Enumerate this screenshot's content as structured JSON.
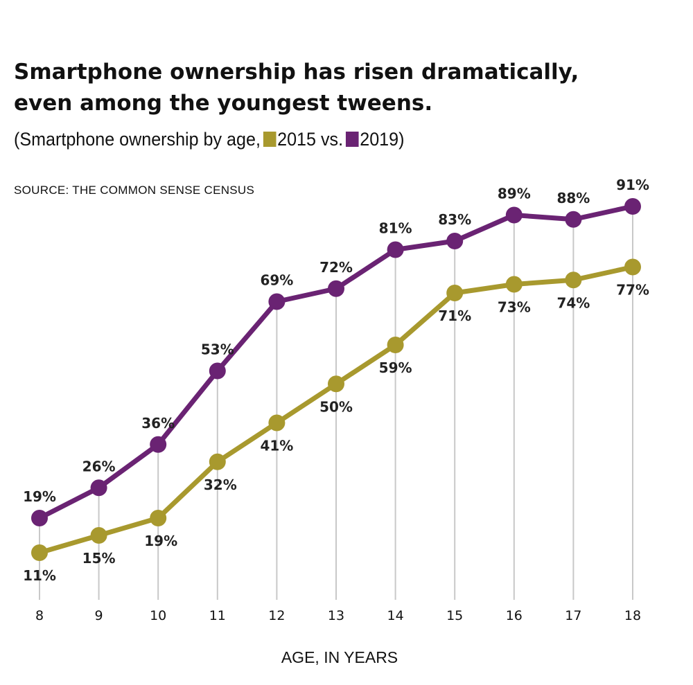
{
  "chart_data": {
    "type": "line",
    "title": "Smartphone ownership has risen dramatically, even among the youngest tweens.",
    "title_lines": [
      "Smartphone ownership has risen dramatically,",
      "even among the youngest tweens."
    ],
    "subtitle": {
      "prefix": "(Smartphone ownership by age,",
      "series1": "2015 vs.",
      "series2": "2019)"
    },
    "source": "SOURCE: THE COMMON SENSE CENSUS",
    "xlabel": "AGE, IN YEARS",
    "ylabel": "",
    "x": [
      8,
      9,
      10,
      11,
      12,
      13,
      14,
      15,
      16,
      17,
      18
    ],
    "ylim": [
      0,
      100
    ],
    "grid": "vertical",
    "legend": "inline-subtitle",
    "series": [
      {
        "name": "2015",
        "color": "#a8992e",
        "values": [
          11,
          15,
          19,
          32,
          41,
          50,
          59,
          71,
          73,
          74,
          77
        ]
      },
      {
        "name": "2019",
        "color": "#6a2373",
        "values": [
          19,
          26,
          36,
          53,
          69,
          72,
          81,
          83,
          89,
          88,
          91
        ]
      }
    ],
    "value_suffix": "%"
  }
}
